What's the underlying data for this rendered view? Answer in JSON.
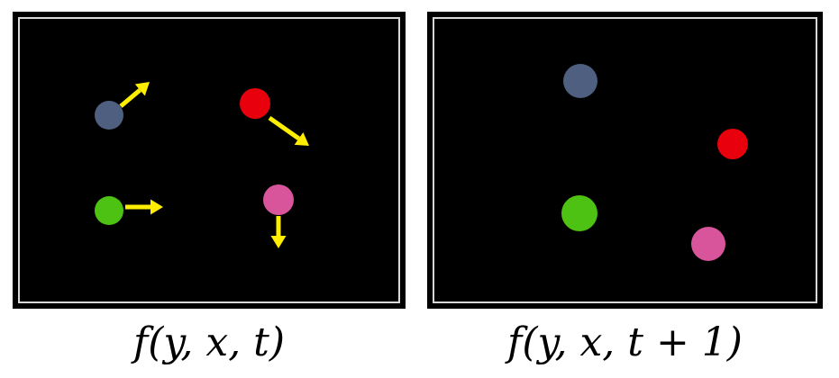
{
  "frames": [
    {
      "label": "f(y, x, t)",
      "shows_motion_arrows": true,
      "objects": [
        {
          "name": "slate-blue-ball",
          "color": "#4e5f80",
          "arrow": "up-right"
        },
        {
          "name": "red-ball",
          "color": "#e8000c",
          "arrow": "down-right"
        },
        {
          "name": "green-ball",
          "color": "#4ec212",
          "arrow": "right"
        },
        {
          "name": "pink-ball",
          "color": "#d9559b",
          "arrow": "down"
        }
      ]
    },
    {
      "label": "f(y, x, t + 1)",
      "shows_motion_arrows": false,
      "objects": [
        {
          "name": "slate-blue-ball",
          "color": "#4e5f80"
        },
        {
          "name": "red-ball",
          "color": "#e8000c"
        },
        {
          "name": "green-ball",
          "color": "#4ec212"
        },
        {
          "name": "pink-ball",
          "color": "#d9559b"
        }
      ]
    }
  ],
  "arrow_color": "#ffee00",
  "background_color": "#000000"
}
